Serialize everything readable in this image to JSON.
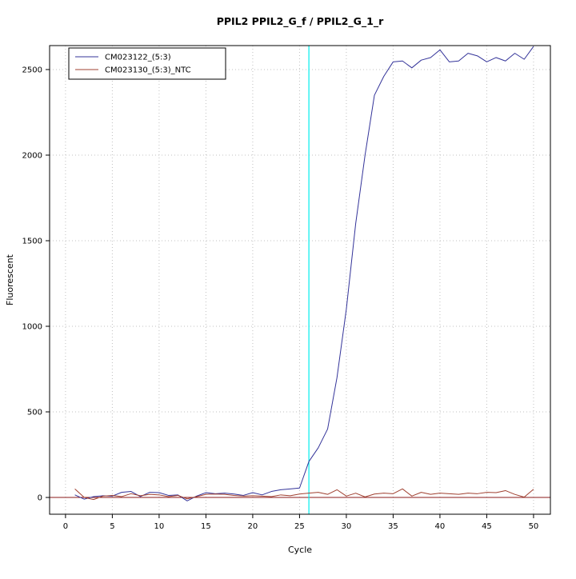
{
  "title": "PPIL2  PPIL2_G_f / PPIL2_G_1_r",
  "xlabel": "Cycle",
  "ylabel": "Fluorescent",
  "legend": {
    "position": "top-left",
    "items": [
      {
        "label": "CM023122_(5:3)",
        "color": "#333399"
      },
      {
        "label": "CM023130_(5:3)_NTC",
        "color": "#a04030"
      }
    ]
  },
  "colors": {
    "series1": "#333399",
    "series2": "#a04030",
    "threshold_vline": "#00eeee",
    "zero_hline": "#8b1a1a",
    "grid": "#c0c0c0",
    "axis": "#000000"
  },
  "chart_data": {
    "type": "line",
    "title": "PPIL2  PPIL2_G_f / PPIL2_G_1_r",
    "xlabel": "Cycle",
    "ylabel": "Fluorescent",
    "grid": true,
    "legend_position": "top-left",
    "xlim": [
      -1.7,
      51.8
    ],
    "ylim": [
      -98,
      2640
    ],
    "xticks": [
      0,
      5,
      10,
      15,
      20,
      25,
      30,
      35,
      40,
      45,
      50
    ],
    "yticks": [
      0,
      500,
      1000,
      1500,
      2000,
      2500
    ],
    "threshold_cycle_vline_x": 26,
    "baseline_hline_y": 0,
    "x": [
      1,
      2,
      3,
      4,
      5,
      6,
      7,
      8,
      9,
      10,
      11,
      12,
      13,
      14,
      15,
      16,
      17,
      18,
      19,
      20,
      21,
      22,
      23,
      24,
      25,
      26,
      27,
      28,
      29,
      30,
      31,
      32,
      33,
      34,
      35,
      36,
      37,
      38,
      39,
      40,
      41,
      42,
      43,
      44,
      45,
      46,
      47,
      48,
      49,
      50
    ],
    "series": [
      {
        "name": "CM023122_(5:3)",
        "color": "#333399",
        "values": [
          15,
          -10,
          5,
          10,
          8,
          30,
          35,
          5,
          30,
          28,
          12,
          15,
          -20,
          8,
          28,
          22,
          25,
          20,
          12,
          28,
          15,
          35,
          45,
          50,
          55,
          210,
          290,
          400,
          700,
          1100,
          1600,
          2000,
          2350,
          2460,
          2545,
          2550,
          2510,
          2555,
          2570,
          2615,
          2545,
          2550,
          2595,
          2580,
          2545,
          2570,
          2550,
          2595,
          2560,
          2635
        ]
      },
      {
        "name": "CM023130_(5:3)_NTC",
        "color": "#a04030",
        "values": [
          50,
          0,
          -12,
          8,
          12,
          5,
          22,
          10,
          18,
          15,
          5,
          12,
          -8,
          5,
          18,
          20,
          18,
          12,
          8,
          10,
          8,
          5,
          15,
          10,
          20,
          25,
          30,
          18,
          45,
          8,
          25,
          3,
          20,
          25,
          22,
          50,
          8,
          30,
          18,
          25,
          22,
          18,
          25,
          22,
          30,
          28,
          40,
          18,
          2,
          48
        ]
      }
    ]
  }
}
